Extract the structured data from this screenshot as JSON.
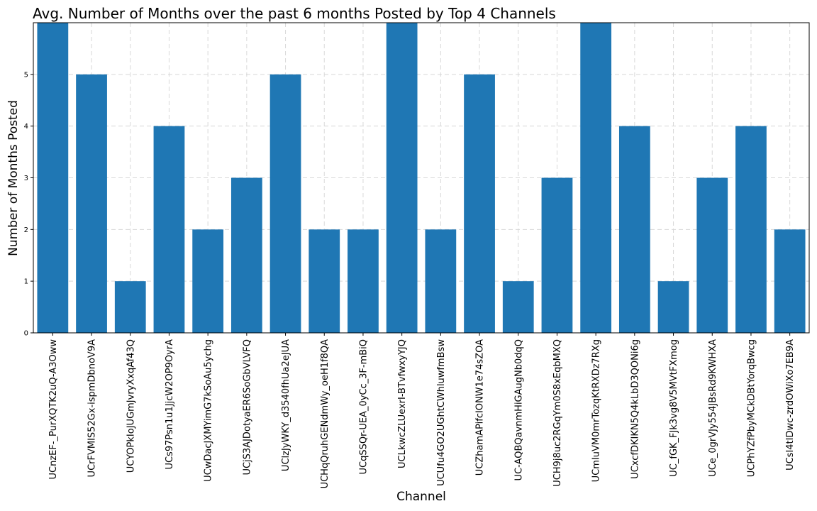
{
  "chart_data": {
    "type": "bar",
    "title": "Avg. Number of Months over the past 6 months Posted by Top 4 Channels",
    "xlabel": "Channel",
    "ylabel": "Number of Months Posted",
    "ylim": [
      0,
      6
    ],
    "yticks": [
      0,
      1,
      2,
      3,
      4,
      5
    ],
    "grid": true,
    "bar_color": "#1f77b4",
    "categories": [
      "UCnzEF-_PurXQTK2uQ-A3Oww",
      "UCrFVMIS52Gx-ispmDbnoV9A",
      "UCYOPkIoJUGmJvryXxqAf43Q",
      "UCs97Psn1u1JjcW2OP9OyrA",
      "UCwDacJXMYimG7kSoAu5ychg",
      "UCjS3AJDotyaER6SoGbVLVFQ",
      "UClzJyWKY_d3540fhUa2eJUA",
      "UCHqQruhGENdmWy_oeH1f8QA",
      "UCqSSQr-UEA_0yCc_3F-mBiQ",
      "UCLkwcZLUexrI-BTvfwxyYJQ",
      "UCUfu4GO2UGhtCWhluwfmBsw",
      "UCZhamAPifcIONW1e74sZOA",
      "UC-AQBQavnmHiGAugNb0dqQ",
      "UCH9j8uc2RGqYm0S8xEqbMXQ",
      "UCmIuVM0mrTozqKtRXDz7RXg",
      "UCxcfDKIKN5Q4kLbD3QONi6g",
      "UC_fGK_FJk3vg8V5MVtFXmog",
      "UCe_0grVJy554JBsRd9KWHXA",
      "UCPhYZfPbyMCkDBtYorqBwcg",
      "UCsI4tIDwc-zrdOWiXo7EB9A"
    ],
    "values": [
      6,
      5,
      1,
      4,
      2,
      3,
      5,
      2,
      2,
      6,
      2,
      5,
      1,
      3,
      6,
      4,
      1,
      3,
      4,
      2
    ]
  }
}
